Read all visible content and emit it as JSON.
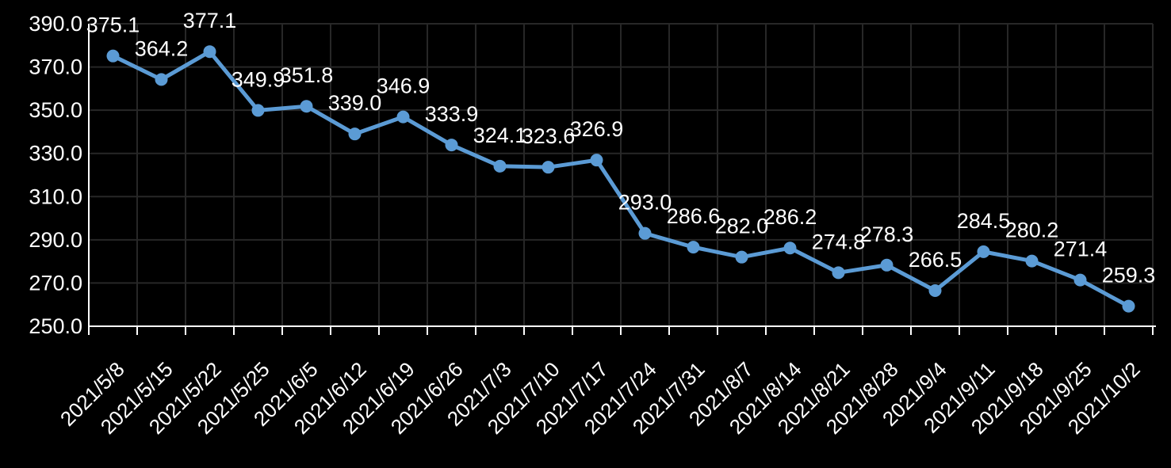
{
  "chart_data": {
    "type": "line",
    "title": "",
    "categories": [
      "2021/5/8",
      "2021/5/15",
      "2021/5/22",
      "2021/5/25",
      "2021/6/5",
      "2021/6/12",
      "2021/6/19",
      "2021/6/26",
      "2021/7/3",
      "2021/7/10",
      "2021/7/17",
      "2021/7/24",
      "2021/7/31",
      "2021/8/7",
      "2021/8/14",
      "2021/8/21",
      "2021/8/28",
      "2021/9/4",
      "2021/9/11",
      "2021/9/18",
      "2021/9/25",
      "2021/10/2"
    ],
    "values": [
      375.1,
      364.2,
      377.1,
      349.9,
      351.8,
      339.0,
      346.9,
      333.9,
      324.1,
      323.6,
      326.9,
      293.0,
      286.6,
      282.0,
      286.2,
      274.8,
      278.3,
      266.5,
      284.5,
      280.2,
      271.4,
      259.3
    ],
    "data_labels": [
      "375.1",
      "364.2",
      "377.1",
      "349.9",
      "351.8",
      "339.0",
      "346.9",
      "333.9",
      "324.1",
      "323.6",
      "326.9",
      "293.0",
      "286.6",
      "282.0",
      "286.2",
      "274.8",
      "278.3",
      "266.5",
      "284.5",
      "280.2",
      "271.4",
      "259.3"
    ],
    "xlabel": "",
    "ylabel": "",
    "ylim": [
      250,
      390
    ],
    "ytick_step": 20,
    "ytick_labels": [
      "390.0",
      "370.0",
      "350.0",
      "330.0",
      "310.0",
      "290.0",
      "270.0",
      "250.0"
    ],
    "grid": true,
    "legend_position": "none",
    "colors": {
      "series": "#5B9BD5",
      "background": "#000000",
      "gridline": "#272727",
      "axis": "#FFFFFF",
      "text": "#FFFFFF"
    }
  }
}
